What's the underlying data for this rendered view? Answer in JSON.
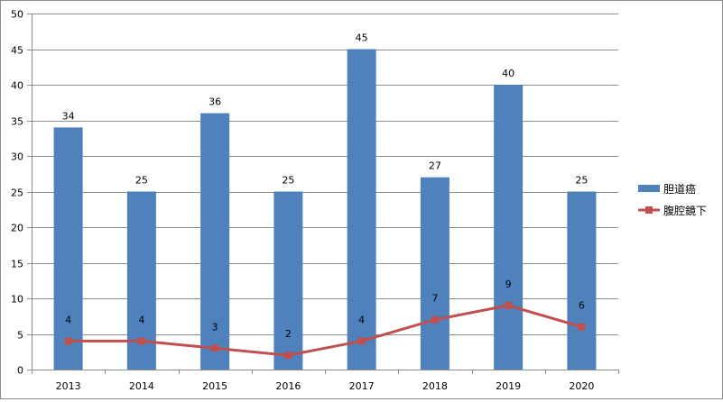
{
  "chart_data": {
    "type": "bar",
    "title": "",
    "xlabel": "",
    "ylabel": "",
    "categories": [
      "2013",
      "2014",
      "2015",
      "2016",
      "2017",
      "2018",
      "2019",
      "2020"
    ],
    "ylim": [
      0,
      50
    ],
    "yticks": [
      "0",
      "5",
      "10",
      "15",
      "20",
      "25",
      "30",
      "35",
      "40",
      "45",
      "50"
    ],
    "grid": true,
    "legend_position": "right",
    "series": [
      {
        "name": "胆道癌",
        "kind": "bar",
        "color": "#4f81bd",
        "values": [
          34,
          25,
          36,
          25,
          45,
          27,
          40,
          25
        ],
        "labels": [
          "34",
          "25",
          "36",
          "25",
          "45",
          "27",
          "40",
          "25"
        ]
      },
      {
        "name": "腹腔鏡下",
        "kind": "line",
        "color": "#c0504d",
        "values": [
          4,
          4,
          3,
          2,
          4,
          7,
          9,
          6
        ],
        "labels": [
          "4",
          "4",
          "3",
          "2",
          "4",
          "7",
          "9",
          "6"
        ]
      }
    ]
  }
}
